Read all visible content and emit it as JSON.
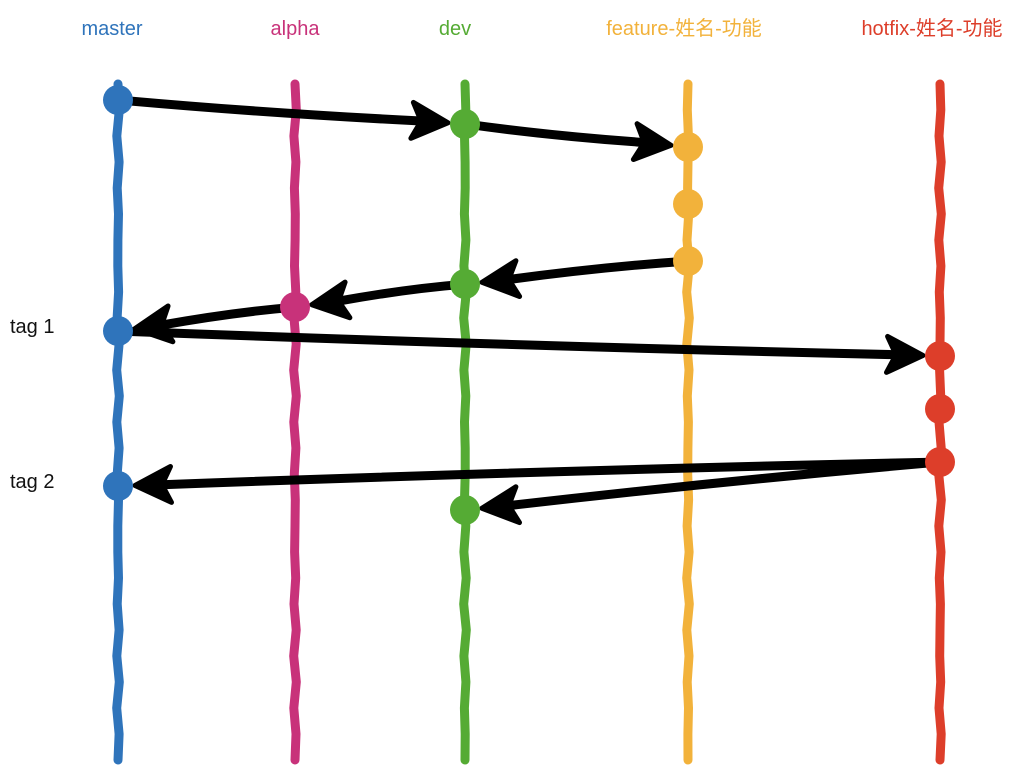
{
  "branches": [
    {
      "id": "master",
      "label": "master",
      "color": "#2f74bb"
    },
    {
      "id": "alpha",
      "label": "alpha",
      "color": "#c8327a"
    },
    {
      "id": "dev",
      "label": "dev",
      "color": "#55ab34"
    },
    {
      "id": "feature",
      "label": "feature-姓名-功能",
      "color": "#f2b23b"
    },
    {
      "id": "hotfix",
      "label": "hotfix-姓名-功能",
      "color": "#dd3e2a"
    }
  ],
  "commits": [
    {
      "id": "m1",
      "branch": "master",
      "seq": 1
    },
    {
      "id": "d1",
      "branch": "dev",
      "seq": 2
    },
    {
      "id": "f1",
      "branch": "feature",
      "seq": 3
    },
    {
      "id": "f2",
      "branch": "feature",
      "seq": 4
    },
    {
      "id": "f3",
      "branch": "feature",
      "seq": 5
    },
    {
      "id": "d2",
      "branch": "dev",
      "seq": 6
    },
    {
      "id": "a1",
      "branch": "alpha",
      "seq": 7
    },
    {
      "id": "m2",
      "branch": "master",
      "seq": 8,
      "tag": "tag 1"
    },
    {
      "id": "h1",
      "branch": "hotfix",
      "seq": 9
    },
    {
      "id": "h2",
      "branch": "hotfix",
      "seq": 10
    },
    {
      "id": "h3",
      "branch": "hotfix",
      "seq": 11
    },
    {
      "id": "m3",
      "branch": "master",
      "seq": 12,
      "tag": "tag 2"
    },
    {
      "id": "d3",
      "branch": "dev",
      "seq": 13
    }
  ],
  "edges": [
    {
      "from": "m1",
      "to": "d1"
    },
    {
      "from": "d1",
      "to": "f1"
    },
    {
      "from": "f3",
      "to": "d2"
    },
    {
      "from": "d2",
      "to": "a1"
    },
    {
      "from": "a1",
      "to": "m2"
    },
    {
      "from": "m2",
      "to": "h1"
    },
    {
      "from": "h3",
      "to": "m3"
    },
    {
      "from": "h3",
      "to": "d3"
    }
  ]
}
